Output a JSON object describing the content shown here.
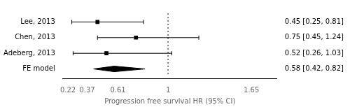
{
  "chart_data": {
    "type": "forest",
    "xlabel": "Progression free survival HR (95% CI)",
    "categories": [
      "Lee, 2013",
      "Chen, 2013",
      "Adeberg, 2013"
    ],
    "values": [
      0.45,
      0.75,
      0.52
    ],
    "ci_low": [
      0.25,
      0.45,
      0.26
    ],
    "ci_high": [
      0.81,
      1.24,
      1.03
    ],
    "value_labels": [
      "0.45 [0.25, 0.81]",
      "0.75 [0.45, 1.24]",
      "0.52 [0.26, 1.03]"
    ],
    "data_labels": true,
    "summary": {
      "name": "FE model",
      "value": 0.58,
      "ci_low": 0.42,
      "ci_high": 0.82,
      "value_label": "0.58 [0.42, 0.82]"
    },
    "ref_line": 1,
    "xlim": [
      0.18,
      1.85
    ],
    "xticks": [
      0.22,
      0.37,
      0.61,
      1,
      1.65
    ],
    "color": "#000000",
    "grid": false
  }
}
